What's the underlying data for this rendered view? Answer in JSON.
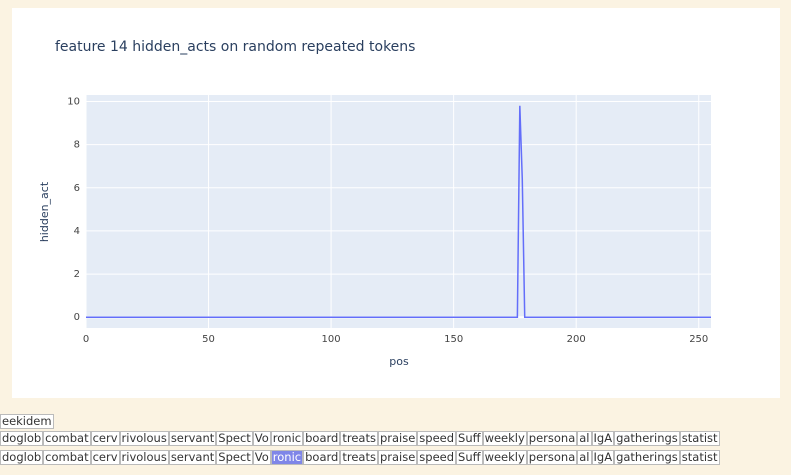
{
  "chart_data": {
    "type": "line",
    "title": "feature 14 hidden_acts on random repeated tokens",
    "x_label": "pos",
    "y_label": "hidden_act",
    "x": [
      0,
      176,
      177,
      178,
      179,
      255
    ],
    "series": [
      {
        "name": "hidden_act",
        "color": "#636efa",
        "values": [
          0,
          0,
          9.8,
          6.4,
          0,
          0
        ]
      }
    ],
    "xlim": [
      0,
      255
    ],
    "ylim": [
      -0.5,
      10.3
    ],
    "xticks": [
      0,
      50,
      100,
      150,
      200,
      250
    ],
    "yticks": [
      0,
      2,
      4,
      6,
      8,
      10
    ],
    "grid": true
  },
  "token_rows": [
    {
      "tokens": [
        "eekidem"
      ]
    },
    {
      "tokens": [
        "doglob",
        "combat",
        "cerv",
        "rivolous",
        "servant",
        "Spect",
        "Vo",
        "ronic",
        "board",
        "treats",
        "praise",
        "speed",
        "Suff",
        "weekly",
        "persona",
        "al",
        "IgA",
        "gatherings",
        "statist"
      ]
    },
    {
      "tokens": [
        "doglob",
        "combat",
        "cerv",
        "rivolous",
        "servant",
        "Spect",
        "Vo",
        "ronic",
        "board",
        "treats",
        "praise",
        "speed",
        "Suff",
        "weekly",
        "persona",
        "al",
        "IgA",
        "gatherings",
        "statist"
      ],
      "highlight": 7
    }
  ]
}
